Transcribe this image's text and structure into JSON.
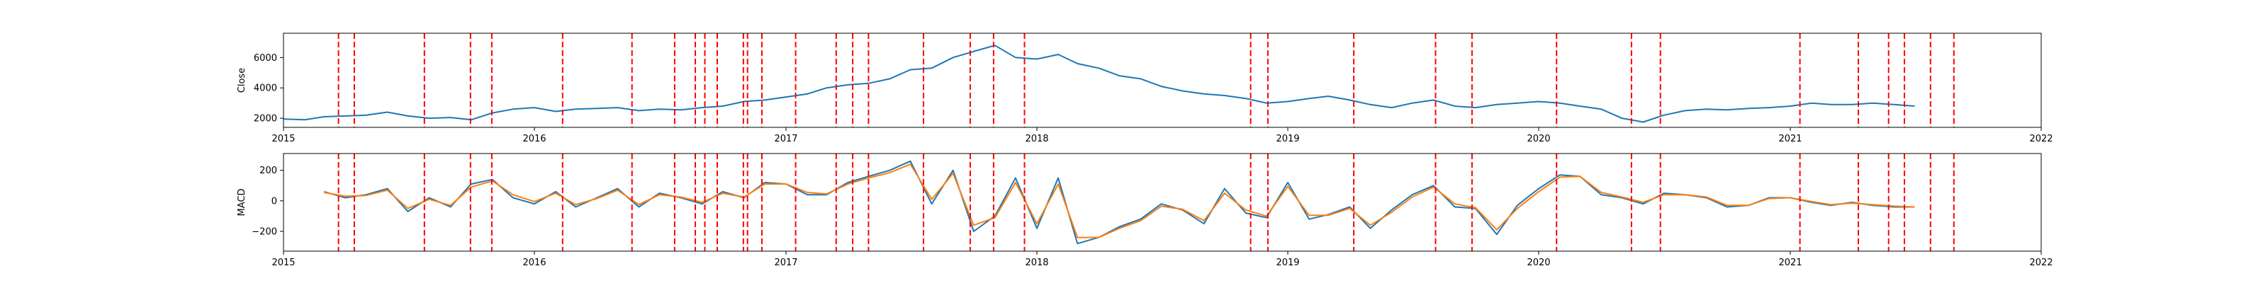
{
  "chart_data": [
    {
      "type": "line",
      "ylabel": "Close",
      "xlabel": "",
      "xlim": [
        "2015-01-01",
        "2022-01-01"
      ],
      "ylim": [
        1400,
        7600
      ],
      "x_ticks": [
        "2015",
        "2016",
        "2017",
        "2018",
        "2019",
        "2020",
        "2021",
        "2022"
      ],
      "y_ticks": [
        2000,
        4000,
        6000
      ],
      "grid": false,
      "series": [
        {
          "color": "#1f77b4",
          "x": [
            "2015-01-01",
            "2015-02-01",
            "2015-03-01",
            "2015-04-01",
            "2015-05-01",
            "2015-06-01",
            "2015-07-01",
            "2015-08-01",
            "2015-09-01",
            "2015-10-01",
            "2015-11-01",
            "2015-12-01",
            "2016-01-01",
            "2016-02-01",
            "2016-03-01",
            "2016-04-01",
            "2016-05-01",
            "2016-06-01",
            "2016-07-01",
            "2016-08-01",
            "2016-09-01",
            "2016-10-01",
            "2016-11-01",
            "2016-12-01",
            "2017-01-01",
            "2017-02-01",
            "2017-03-01",
            "2017-04-01",
            "2017-05-01",
            "2017-06-01",
            "2017-07-01",
            "2017-08-01",
            "2017-09-01",
            "2017-10-01",
            "2017-11-01",
            "2017-12-01",
            "2018-01-01",
            "2018-02-01",
            "2018-03-01",
            "2018-04-01",
            "2018-05-01",
            "2018-06-01",
            "2018-07-01",
            "2018-08-01",
            "2018-09-01",
            "2018-10-01",
            "2018-11-01",
            "2018-12-01",
            "2019-01-01",
            "2019-02-01",
            "2019-03-01",
            "2019-04-01",
            "2019-05-01",
            "2019-06-01",
            "2019-07-01",
            "2019-08-01",
            "2019-09-01",
            "2019-10-01",
            "2019-11-01",
            "2019-12-01",
            "2020-01-01",
            "2020-02-01",
            "2020-03-01",
            "2020-04-01",
            "2020-05-01",
            "2020-06-01",
            "2020-07-01",
            "2020-08-01",
            "2020-09-01",
            "2020-10-01",
            "2020-11-01",
            "2020-12-01",
            "2021-01-01",
            "2021-02-01",
            "2021-03-01",
            "2021-04-01",
            "2021-05-01",
            "2021-06-01",
            "2021-07-01"
          ],
          "values": [
            1950,
            1900,
            2100,
            2150,
            2200,
            2400,
            2150,
            2000,
            2050,
            1900,
            2350,
            2600,
            2700,
            2450,
            2600,
            2650,
            2700,
            2500,
            2600,
            2550,
            2700,
            2800,
            3100,
            3200,
            3400,
            3600,
            4000,
            4200,
            4300,
            4600,
            5200,
            5300,
            6000,
            6400,
            6800,
            6000,
            5900,
            6200,
            5600,
            5300,
            4800,
            4600,
            4100,
            3800,
            3600,
            3500,
            3300,
            3000,
            3100,
            3300,
            3450,
            3200,
            2900,
            2700,
            3000,
            3200,
            2800,
            2700,
            2900,
            3000,
            3100,
            3000,
            2800,
            2600,
            2000,
            1750,
            2200,
            2500,
            2600,
            2550,
            2650,
            2700,
            2800,
            3000,
            2900,
            2900,
            3000,
            2900,
            2800
          ]
        }
      ]
    },
    {
      "type": "line",
      "ylabel": "MACD",
      "xlabel": "",
      "xlim": [
        "2015-01-01",
        "2022-01-01"
      ],
      "ylim": [
        -330,
        310
      ],
      "x_ticks": [
        "2015",
        "2016",
        "2017",
        "2018",
        "2019",
        "2020",
        "2021",
        "2022"
      ],
      "y_ticks": [
        -200,
        0,
        200
      ],
      "grid": false,
      "series": [
        {
          "color": "#1f77b4",
          "x": [
            "2015-03-01",
            "2015-04-01",
            "2015-05-01",
            "2015-06-01",
            "2015-07-01",
            "2015-08-01",
            "2015-09-01",
            "2015-10-01",
            "2015-11-01",
            "2015-12-01",
            "2016-01-01",
            "2016-02-01",
            "2016-03-01",
            "2016-04-01",
            "2016-05-01",
            "2016-06-01",
            "2016-07-01",
            "2016-08-01",
            "2016-09-01",
            "2016-10-01",
            "2016-11-01",
            "2016-12-01",
            "2017-01-01",
            "2017-02-01",
            "2017-03-01",
            "2017-04-01",
            "2017-05-01",
            "2017-06-01",
            "2017-07-01",
            "2017-08-01",
            "2017-09-01",
            "2017-10-01",
            "2017-11-01",
            "2017-12-01",
            "2018-01-01",
            "2018-02-01",
            "2018-03-01",
            "2018-04-01",
            "2018-05-01",
            "2018-06-01",
            "2018-07-01",
            "2018-08-01",
            "2018-09-01",
            "2018-10-01",
            "2018-11-01",
            "2018-12-01",
            "2019-01-01",
            "2019-02-01",
            "2019-03-01",
            "2019-04-01",
            "2019-05-01",
            "2019-06-01",
            "2019-07-01",
            "2019-08-01",
            "2019-09-01",
            "2019-10-01",
            "2019-11-01",
            "2019-12-01",
            "2020-01-01",
            "2020-02-01",
            "2020-03-01",
            "2020-04-01",
            "2020-05-01",
            "2020-06-01",
            "2020-07-01",
            "2020-08-01",
            "2020-09-01",
            "2020-10-01",
            "2020-11-01",
            "2020-12-01",
            "2021-01-01",
            "2021-02-01",
            "2021-03-01",
            "2021-04-01",
            "2021-05-01",
            "2021-06-01",
            "2021-07-01"
          ],
          "values": [
            60,
            20,
            40,
            80,
            -70,
            20,
            -40,
            110,
            140,
            20,
            -20,
            60,
            -40,
            20,
            80,
            -40,
            50,
            20,
            -20,
            60,
            20,
            120,
            110,
            40,
            40,
            120,
            160,
            200,
            260,
            -20,
            200,
            -200,
            -100,
            150,
            -180,
            150,
            -280,
            -240,
            -170,
            -120,
            -20,
            -60,
            -150,
            80,
            -80,
            -110,
            120,
            -120,
            -90,
            -40,
            -180,
            -60,
            40,
            100,
            -40,
            -50,
            -220,
            -30,
            80,
            170,
            160,
            40,
            20,
            -20,
            50,
            40,
            20,
            -40,
            -30,
            20,
            20,
            -10,
            -30,
            -10,
            -30,
            -40,
            -40
          ]
        },
        {
          "color": "#ff7f0e",
          "x": [
            "2015-03-01",
            "2015-04-01",
            "2015-05-01",
            "2015-06-01",
            "2015-07-01",
            "2015-08-01",
            "2015-09-01",
            "2015-10-01",
            "2015-11-01",
            "2015-12-01",
            "2016-01-01",
            "2016-02-01",
            "2016-03-01",
            "2016-04-01",
            "2016-05-01",
            "2016-06-01",
            "2016-07-01",
            "2016-08-01",
            "2016-09-01",
            "2016-10-01",
            "2016-11-01",
            "2016-12-01",
            "2017-01-01",
            "2017-02-01",
            "2017-03-01",
            "2017-04-01",
            "2017-05-01",
            "2017-06-01",
            "2017-07-01",
            "2017-08-01",
            "2017-09-01",
            "2017-10-01",
            "2017-11-01",
            "2017-12-01",
            "2018-01-01",
            "2018-02-01",
            "2018-03-01",
            "2018-04-01",
            "2018-05-01",
            "2018-06-01",
            "2018-07-01",
            "2018-08-01",
            "2018-09-01",
            "2018-10-01",
            "2018-11-01",
            "2018-12-01",
            "2019-01-01",
            "2019-02-01",
            "2019-03-01",
            "2019-04-01",
            "2019-05-01",
            "2019-06-01",
            "2019-07-01",
            "2019-08-01",
            "2019-09-01",
            "2019-10-01",
            "2019-11-01",
            "2019-12-01",
            "2020-01-01",
            "2020-02-01",
            "2020-03-01",
            "2020-04-01",
            "2020-05-01",
            "2020-06-01",
            "2020-07-01",
            "2020-08-01",
            "2020-09-01",
            "2020-10-01",
            "2020-11-01",
            "2020-12-01",
            "2021-01-01",
            "2021-02-01",
            "2021-03-01",
            "2021-04-01",
            "2021-05-01",
            "2021-06-01",
            "2021-07-01"
          ],
          "values": [
            55,
            30,
            35,
            70,
            -50,
            10,
            -30,
            90,
            130,
            40,
            -5,
            50,
            -25,
            15,
            70,
            -25,
            40,
            25,
            -10,
            50,
            25,
            110,
            110,
            55,
            45,
            110,
            150,
            185,
            240,
            10,
            180,
            -160,
            -110,
            120,
            -150,
            110,
            -240,
            -240,
            -180,
            -130,
            -35,
            -55,
            -130,
            50,
            -60,
            -100,
            95,
            -95,
            -95,
            -50,
            -160,
            -75,
            25,
            90,
            -20,
            -45,
            -190,
            -50,
            60,
            155,
            160,
            55,
            25,
            -10,
            40,
            40,
            25,
            -30,
            -30,
            15,
            20,
            -5,
            -25,
            -15,
            -25,
            -35,
            -40
          ]
        }
      ]
    }
  ],
  "event_markers": {
    "color": "#ff0000",
    "style": "dashed",
    "dates": [
      "2015-03-22",
      "2015-04-14",
      "2015-07-25",
      "2015-09-30",
      "2015-10-31",
      "2016-02-11",
      "2016-05-22",
      "2016-07-23",
      "2016-08-22",
      "2016-09-05",
      "2016-09-23",
      "2016-10-31",
      "2016-11-06",
      "2016-11-27",
      "2017-01-15",
      "2017-03-15",
      "2017-04-08",
      "2017-05-01",
      "2017-07-20",
      "2017-09-26",
      "2017-10-30",
      "2017-12-14",
      "2018-11-08",
      "2018-12-03",
      "2019-04-07",
      "2019-08-04",
      "2019-09-26",
      "2020-01-27",
      "2020-05-15",
      "2020-06-26",
      "2021-01-15",
      "2021-04-10",
      "2021-05-24",
      "2021-06-16",
      "2021-07-24",
      "2021-08-27"
    ]
  }
}
